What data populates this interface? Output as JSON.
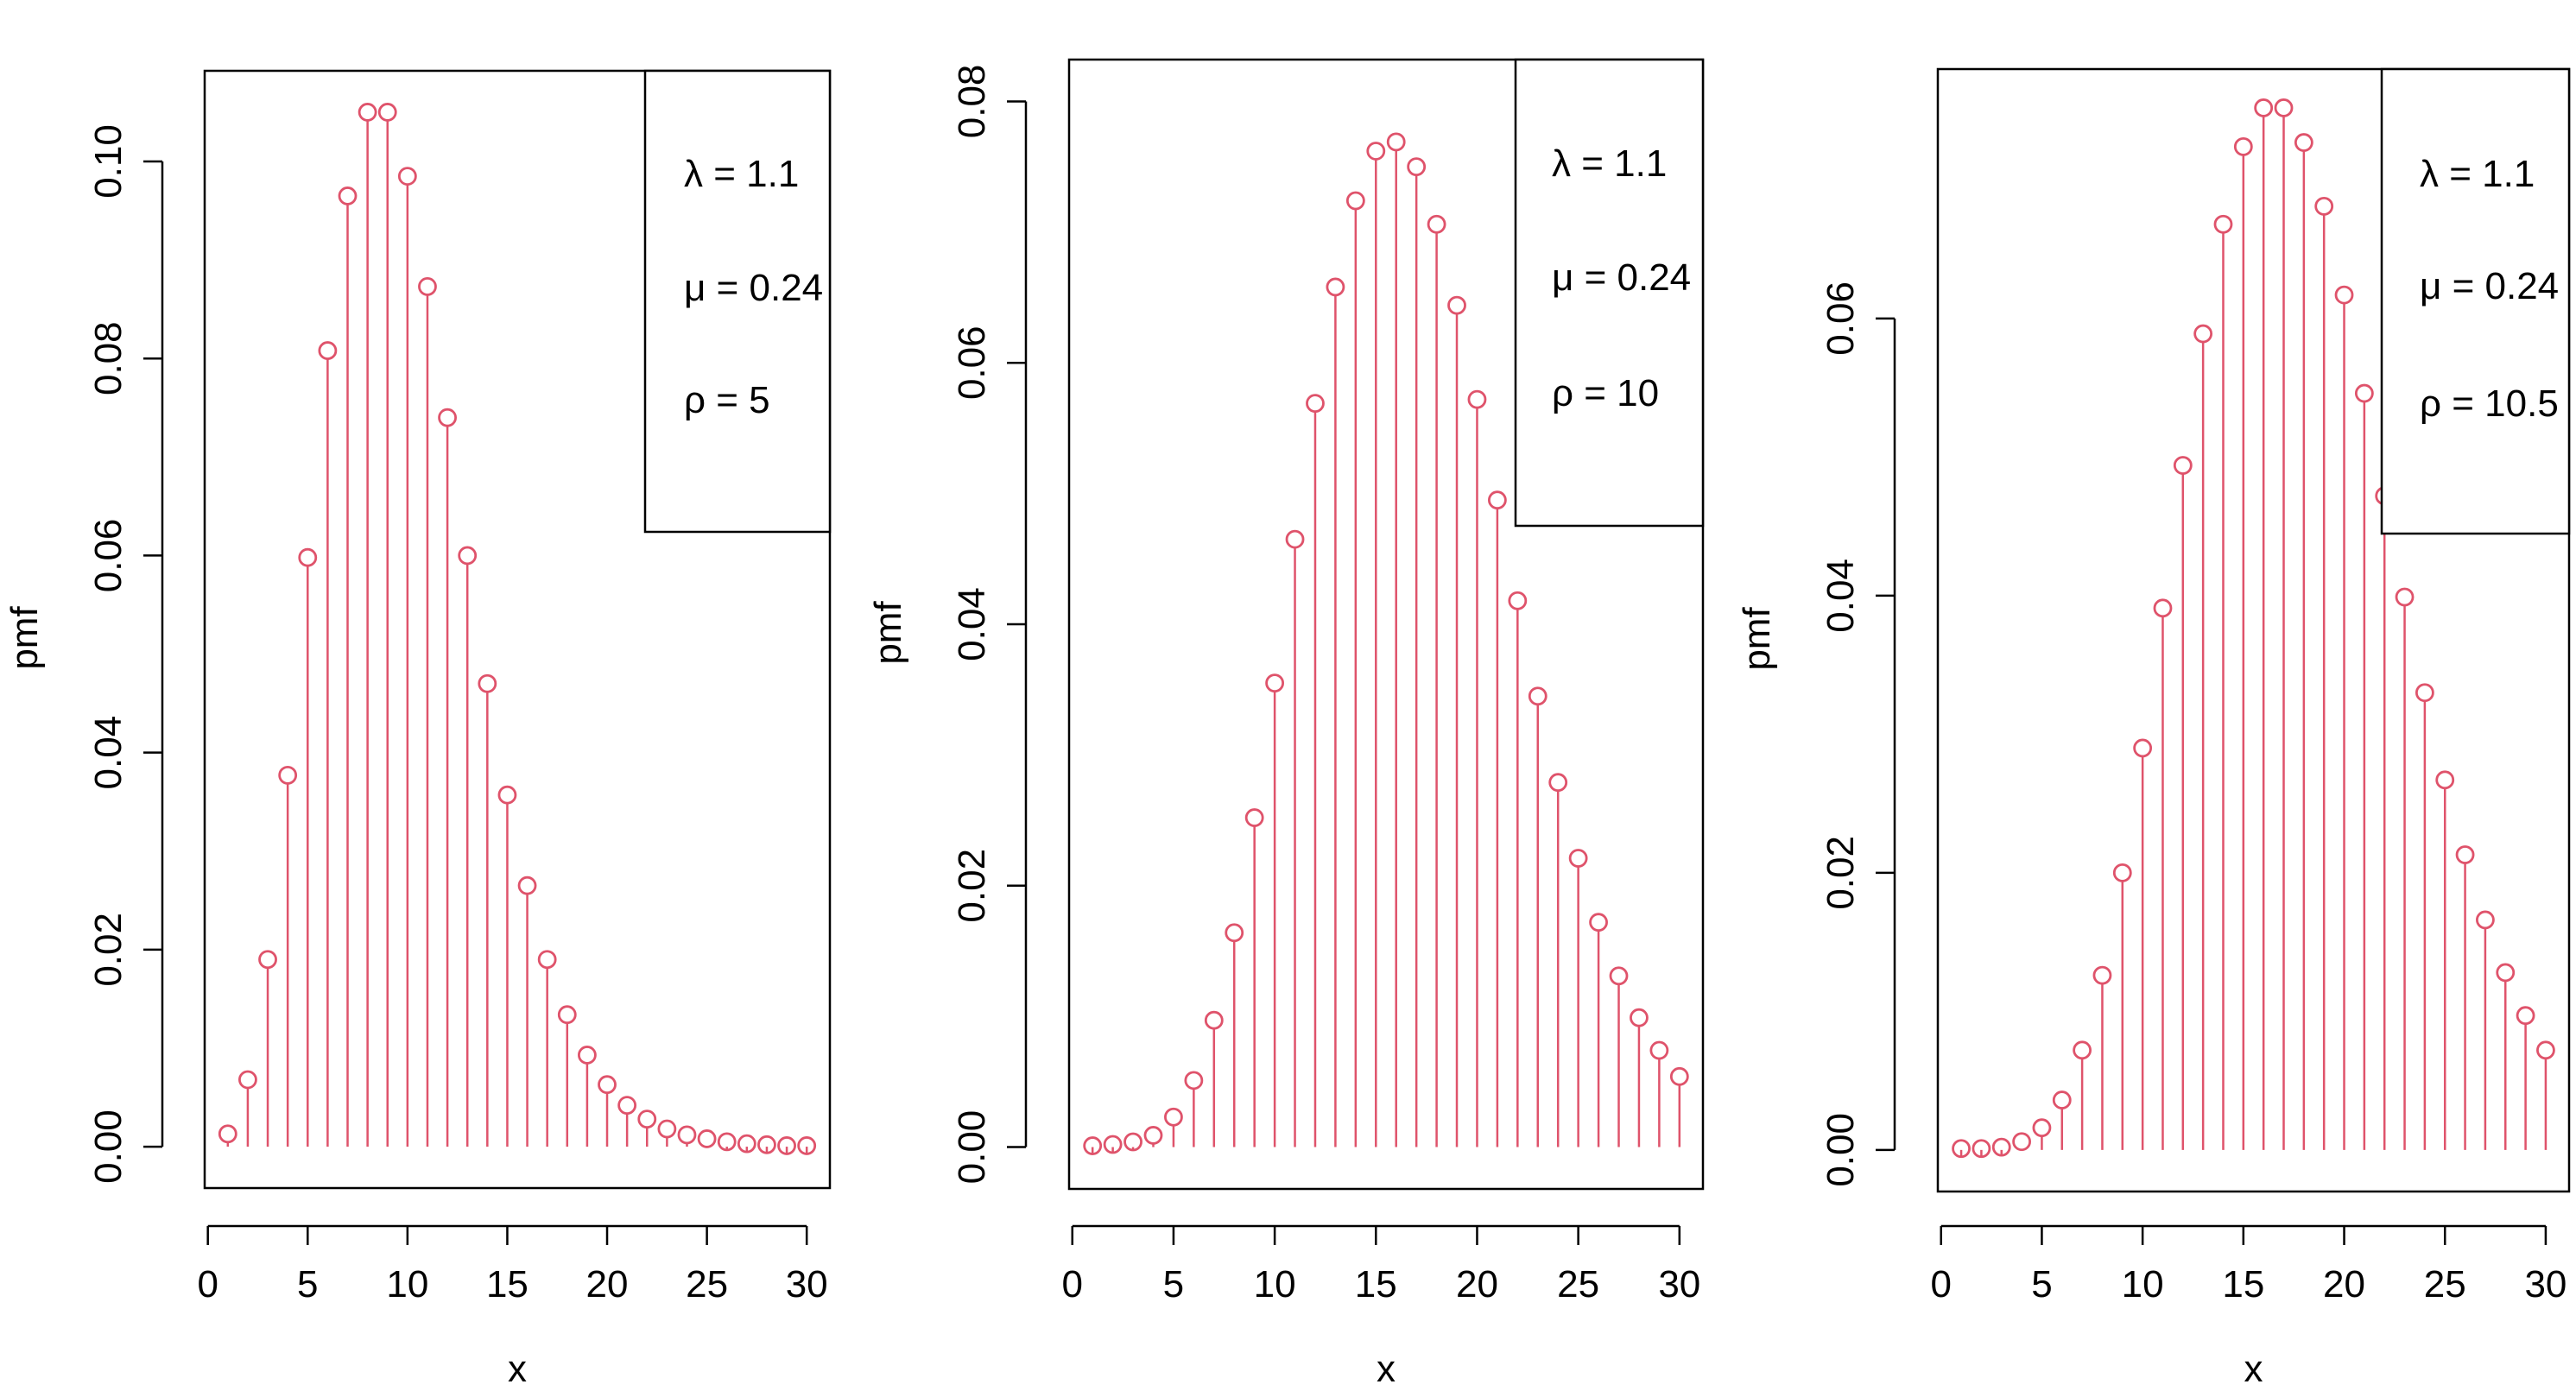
{
  "colors": {
    "stem": "#DF536B",
    "axis": "#000000",
    "background": "#FFFFFF"
  },
  "chart_data": [
    {
      "type": "stem",
      "xlabel": "x",
      "ylabel": "pmf",
      "xlim": [
        1,
        30
      ],
      "ylim": [
        0,
        0.105
      ],
      "xticks": [
        0,
        5,
        10,
        15,
        20,
        25,
        30
      ],
      "xtick_labels": [
        "0",
        "5",
        "10",
        "15",
        "20",
        "25",
        "30"
      ],
      "yticks": [
        0,
        0.02,
        0.04,
        0.06,
        0.08,
        0.1
      ],
      "ytick_labels": [
        "0.00",
        "0.02",
        "0.04",
        "0.06",
        "0.08",
        "0.10"
      ],
      "legend_position": "top-right",
      "legend": [
        "λ = 1.1",
        "μ = 0.24",
        "ρ = 5"
      ],
      "x": [
        1,
        2,
        3,
        4,
        5,
        6,
        7,
        8,
        9,
        10,
        11,
        12,
        13,
        14,
        15,
        16,
        17,
        18,
        19,
        20,
        21,
        22,
        23,
        24,
        25,
        26,
        27,
        28,
        29,
        30
      ],
      "values": [
        0.0013,
        0.0068,
        0.019,
        0.0377,
        0.0598,
        0.0808,
        0.0965,
        0.105,
        0.105,
        0.0985,
        0.0873,
        0.074,
        0.06,
        0.047,
        0.0357,
        0.0265,
        0.019,
        0.0134,
        0.0093,
        0.0063,
        0.0042,
        0.0028,
        0.0018,
        0.0012,
        0.0008,
        0.0005,
        0.0003,
        0.0002,
        0.0001,
        0.0001
      ]
    },
    {
      "type": "stem",
      "xlabel": "x",
      "ylabel": "pmf",
      "xlim": [
        1,
        30
      ],
      "ylim": [
        0,
        0.08
      ],
      "xticks": [
        0,
        5,
        10,
        15,
        20,
        25,
        30
      ],
      "xtick_labels": [
        "0",
        "5",
        "10",
        "15",
        "20",
        "25",
        "30"
      ],
      "yticks": [
        0,
        0.02,
        0.04,
        0.06,
        0.08
      ],
      "ytick_labels": [
        "0.00",
        "0.02",
        "0.04",
        "0.06",
        "0.08"
      ],
      "legend_position": "top-right",
      "legend": [
        "λ = 1.1",
        "μ = 0.24",
        "ρ = 10"
      ],
      "x": [
        1,
        2,
        3,
        4,
        5,
        6,
        7,
        8,
        9,
        10,
        11,
        12,
        13,
        14,
        15,
        16,
        17,
        18,
        19,
        20,
        21,
        22,
        23,
        24,
        25,
        26,
        27,
        28,
        29,
        30
      ],
      "values": [
        0.0001,
        0.0002,
        0.0004,
        0.0009,
        0.0023,
        0.0051,
        0.0097,
        0.0164,
        0.0252,
        0.0355,
        0.0465,
        0.0569,
        0.0658,
        0.0724,
        0.0762,
        0.0769,
        0.075,
        0.0706,
        0.0644,
        0.0572,
        0.0495,
        0.0418,
        0.0345,
        0.0279,
        0.0221,
        0.0172,
        0.0131,
        0.0099,
        0.0074,
        0.0054
      ]
    },
    {
      "type": "stem",
      "xlabel": "x",
      "ylabel": "pmf",
      "xlim": [
        1,
        30
      ],
      "ylim": [
        0,
        0.075
      ],
      "xticks": [
        0,
        5,
        10,
        15,
        20,
        25,
        30
      ],
      "xtick_labels": [
        "0",
        "5",
        "10",
        "15",
        "20",
        "25",
        "30"
      ],
      "yticks": [
        0,
        0.02,
        0.04,
        0.06
      ],
      "ytick_labels": [
        "0.00",
        "0.02",
        "0.04",
        "0.06"
      ],
      "legend_position": "top-right",
      "legend": [
        "λ = 1.1",
        "μ = 0.24",
        "ρ = 10.5"
      ],
      "x": [
        1,
        2,
        3,
        4,
        5,
        6,
        7,
        8,
        9,
        10,
        11,
        12,
        13,
        14,
        15,
        16,
        17,
        18,
        19,
        20,
        21,
        22,
        23,
        24,
        25,
        26,
        27,
        28,
        29,
        30
      ],
      "values": [
        0.0001,
        0.0001,
        0.0002,
        0.0006,
        0.0016,
        0.0036,
        0.0072,
        0.0126,
        0.02,
        0.029,
        0.0391,
        0.0494,
        0.0589,
        0.0668,
        0.0724,
        0.0752,
        0.0752,
        0.0727,
        0.0681,
        0.0617,
        0.0546,
        0.0472,
        0.0399,
        0.033,
        0.0267,
        0.0213,
        0.0166,
        0.0128,
        0.0097,
        0.0072
      ]
    }
  ]
}
